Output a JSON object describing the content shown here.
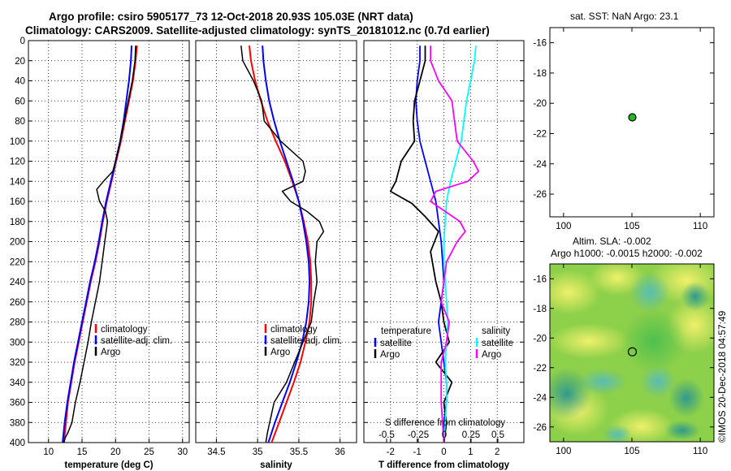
{
  "header": {
    "title_line1": "Argo profile: csiro 5905177_73 12-Oct-2018 20.93S 105.03E (NRT data)",
    "title_line2": "Climatology: CARS2009. Satellite-adjusted climatology: synTS_20181012.nc (0.7d earlier)"
  },
  "depth_ticks": [
    0,
    20,
    40,
    60,
    80,
    100,
    120,
    140,
    160,
    180,
    200,
    220,
    240,
    260,
    280,
    300,
    320,
    340,
    360,
    380,
    400
  ],
  "colors": {
    "climatology": "#ff0000",
    "satellite": "#0000ff",
    "argo": "#000000",
    "argo_salinity": "#ff00ff",
    "sat_salinity": "#00ffff",
    "dot": "#22bb22"
  },
  "chart_data": [
    {
      "id": "temperature",
      "type": "line",
      "xlabel": "temperature (deg C)",
      "xlim": [
        7,
        31
      ],
      "ylim": [
        0,
        400
      ],
      "xticks": [
        10,
        15,
        20,
        25,
        30
      ],
      "legend": [
        "climatology",
        "satellite-adj. clim.",
        "Argo"
      ],
      "series": [
        {
          "name": "climatology",
          "x": [
            23.2,
            23.0,
            22.6,
            22.0,
            21.4,
            20.8,
            20.1,
            19.4,
            18.7,
            18.1,
            17.6,
            17.0,
            16.3,
            15.7,
            15.1,
            14.5,
            13.9,
            13.4,
            12.9,
            12.6,
            12.3
          ],
          "y": [
            5,
            20,
            40,
            60,
            80,
            100,
            120,
            140,
            160,
            180,
            200,
            220,
            240,
            260,
            280,
            300,
            320,
            340,
            360,
            380,
            400
          ]
        },
        {
          "name": "satellite-adj. clim.",
          "x": [
            22.4,
            22.3,
            22.0,
            21.6,
            21.2,
            20.7,
            20.0,
            19.3,
            18.6,
            18.0,
            17.5,
            16.9,
            16.2,
            15.6,
            15.0,
            14.4,
            13.8,
            13.3,
            12.8,
            12.4,
            12.1
          ],
          "y": [
            5,
            20,
            40,
            60,
            80,
            100,
            120,
            140,
            160,
            180,
            200,
            220,
            240,
            260,
            280,
            300,
            320,
            340,
            360,
            380,
            400
          ]
        },
        {
          "name": "Argo",
          "x": [
            23.0,
            22.9,
            22.5,
            21.9,
            21.3,
            20.7,
            20.0,
            19.6,
            18.2,
            17.2,
            17.6,
            18.5,
            18.8,
            18.4,
            18.0,
            17.6,
            17.0,
            16.4,
            15.9,
            15.3,
            14.7,
            14.0,
            13.5,
            12.9,
            12.5,
            12.3
          ],
          "y": [
            5,
            20,
            40,
            60,
            80,
            100,
            120,
            130,
            140,
            148,
            160,
            170,
            180,
            200,
            220,
            240,
            260,
            280,
            300,
            320,
            340,
            360,
            380,
            390,
            395,
            400
          ]
        }
      ]
    },
    {
      "id": "salinity",
      "type": "line",
      "xlabel": "salinity",
      "xlim": [
        34.25,
        36.2
      ],
      "ylim": [
        0,
        400
      ],
      "xticks": [
        34.5,
        35,
        35.5,
        36
      ],
      "xtick_labels": [
        "34.5",
        "35",
        "35.5",
        "36"
      ],
      "legend": [
        "climatology",
        "satellite-adj. clim.",
        "Argo"
      ],
      "series": [
        {
          "name": "climatology",
          "x": [
            34.9,
            34.92,
            34.97,
            35.04,
            35.12,
            35.22,
            35.33,
            35.42,
            35.5,
            35.56,
            35.61,
            35.64,
            35.65,
            35.65,
            35.63,
            35.58,
            35.52,
            35.44,
            35.35,
            35.26,
            35.17
          ],
          "y": [
            5,
            20,
            40,
            60,
            80,
            100,
            120,
            140,
            160,
            180,
            200,
            220,
            240,
            260,
            280,
            300,
            320,
            340,
            360,
            380,
            400
          ]
        },
        {
          "name": "satellite-adj. clim.",
          "x": [
            35.06,
            35.07,
            35.1,
            35.14,
            35.2,
            35.27,
            35.35,
            35.43,
            35.5,
            35.55,
            35.59,
            35.62,
            35.63,
            35.62,
            35.59,
            35.54,
            35.47,
            35.39,
            35.3,
            35.21,
            35.13
          ],
          "y": [
            5,
            20,
            40,
            60,
            80,
            100,
            120,
            140,
            160,
            180,
            200,
            220,
            240,
            260,
            280,
            300,
            320,
            340,
            360,
            380,
            400
          ]
        },
        {
          "name": "Argo",
          "x": [
            34.8,
            34.82,
            34.95,
            35.05,
            35.08,
            35.28,
            35.55,
            35.58,
            35.55,
            35.3,
            35.4,
            35.6,
            35.75,
            35.8,
            35.72,
            35.7,
            35.72,
            35.68,
            35.65,
            35.55,
            35.45,
            35.35,
            35.2,
            35.12,
            35.1
          ],
          "y": [
            5,
            20,
            40,
            60,
            80,
            100,
            120,
            130,
            140,
            150,
            160,
            170,
            180,
            190,
            200,
            220,
            240,
            260,
            280,
            300,
            320,
            340,
            360,
            390,
            400
          ]
        }
      ]
    },
    {
      "id": "difference",
      "type": "line",
      "xlabel": "T difference from climatology",
      "xlabel_top": "S difference from climatology",
      "xlim": [
        -3.0,
        3.0
      ],
      "ylim": [
        0,
        400
      ],
      "xticks": [
        -2,
        -1,
        0,
        1,
        2
      ],
      "s_ticks": [
        "-0.5",
        "-0.25",
        "0",
        "0.25",
        "0.5"
      ],
      "legend_left_title": "temperature",
      "legend_right_title": "salinity",
      "legend_left": [
        "satellite",
        "Argo"
      ],
      "legend_right": [
        "satellite",
        "Argo"
      ],
      "series": [
        {
          "name": "T satellite",
          "x": [
            -0.9,
            -0.9,
            -1.0,
            -1.05,
            -1.0,
            -0.9,
            -0.7,
            -0.5,
            -0.3,
            -0.2,
            -0.1,
            -0.05,
            0.0,
            -0.1,
            -0.2,
            -0.1,
            0.0,
            0.1,
            0.1,
            0.0,
            0.0
          ],
          "y": [
            5,
            20,
            40,
            60,
            80,
            100,
            120,
            140,
            160,
            180,
            200,
            220,
            240,
            260,
            280,
            300,
            320,
            340,
            360,
            380,
            400
          ]
        },
        {
          "name": "T Argo",
          "x": [
            -0.7,
            -0.7,
            -0.9,
            -1.1,
            -1.15,
            -1.1,
            -1.6,
            -1.8,
            -2.0,
            -1.2,
            -0.7,
            -0.2,
            -0.5,
            -0.3,
            -0.1,
            0.0,
            0.2,
            -0.3,
            0.3,
            0.0,
            0.1,
            0.0
          ],
          "y": [
            5,
            20,
            40,
            60,
            80,
            100,
            120,
            140,
            150,
            162,
            175,
            190,
            210,
            240,
            260,
            280,
            300,
            320,
            340,
            360,
            380,
            400
          ]
        },
        {
          "name": "S satellite",
          "x": [
            1.2,
            1.15,
            1.0,
            0.85,
            0.75,
            0.65,
            0.45,
            0.25,
            0.1,
            0.05,
            0.0,
            0.0,
            0.05,
            0.1,
            0.15,
            0.1,
            0.05,
            0.1,
            0.1,
            0.05,
            0.0
          ],
          "y": [
            5,
            20,
            40,
            60,
            80,
            100,
            120,
            140,
            160,
            180,
            200,
            220,
            240,
            260,
            280,
            300,
            320,
            340,
            360,
            380,
            400
          ]
        },
        {
          "name": "S Argo",
          "x": [
            -0.5,
            -0.5,
            -0.2,
            0.3,
            0.4,
            0.5,
            1.1,
            1.3,
            0.9,
            -0.3,
            -0.5,
            0.6,
            0.8,
            0.5,
            0.1,
            0.0,
            -0.1,
            0.2,
            0.1,
            -0.1,
            -0.1,
            0.0
          ],
          "y": [
            5,
            20,
            40,
            60,
            80,
            100,
            120,
            130,
            140,
            150,
            160,
            180,
            190,
            200,
            220,
            240,
            260,
            280,
            300,
            320,
            360,
            400
          ]
        }
      ]
    },
    {
      "id": "sst_map",
      "type": "scatter",
      "title": "sat. SST: NaN Argo: 23.1",
      "xlim": [
        99,
        111
      ],
      "ylim": [
        -27.5,
        -15
      ],
      "xticks": [
        100,
        105,
        110
      ],
      "yticks": [
        -16,
        -18,
        -20,
        -22,
        -24,
        -26
      ],
      "points": [
        {
          "x": 105.03,
          "y": -20.93
        }
      ]
    },
    {
      "id": "sla_map",
      "type": "heatmap",
      "title_line1": "Altim. SLA: -0.002",
      "title_line2": "Argo h1000: -0.0015 h2000: -0.002",
      "xlim": [
        99,
        111
      ],
      "ylim": [
        -27,
        -15
      ],
      "xticks": [
        100,
        105,
        110
      ],
      "yticks": [
        -16,
        -18,
        -20,
        -22,
        -24,
        -26
      ],
      "points": [
        {
          "x": 105.03,
          "y": -20.93
        }
      ]
    }
  ],
  "watermark": "©IMOS 20-Dec-2018 04:57:49"
}
